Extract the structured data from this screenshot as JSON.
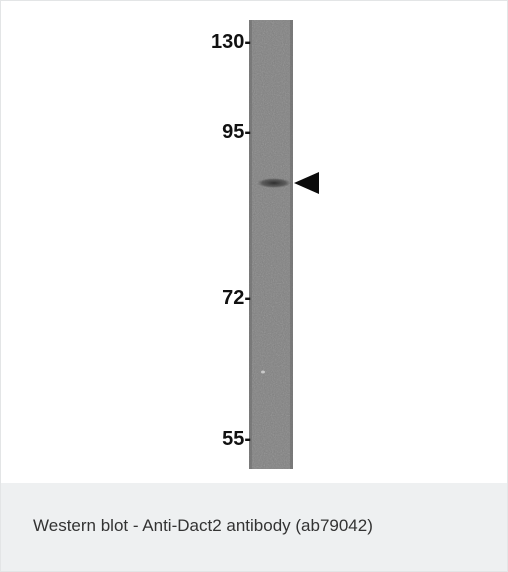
{
  "figure": {
    "markers": [
      {
        "label": "130-"
      },
      {
        "label": "95-"
      },
      {
        "label": "72-"
      },
      {
        "label": "55-"
      }
    ],
    "caption": "Western blot - Anti-Dact2 antibody (ab79042)"
  }
}
